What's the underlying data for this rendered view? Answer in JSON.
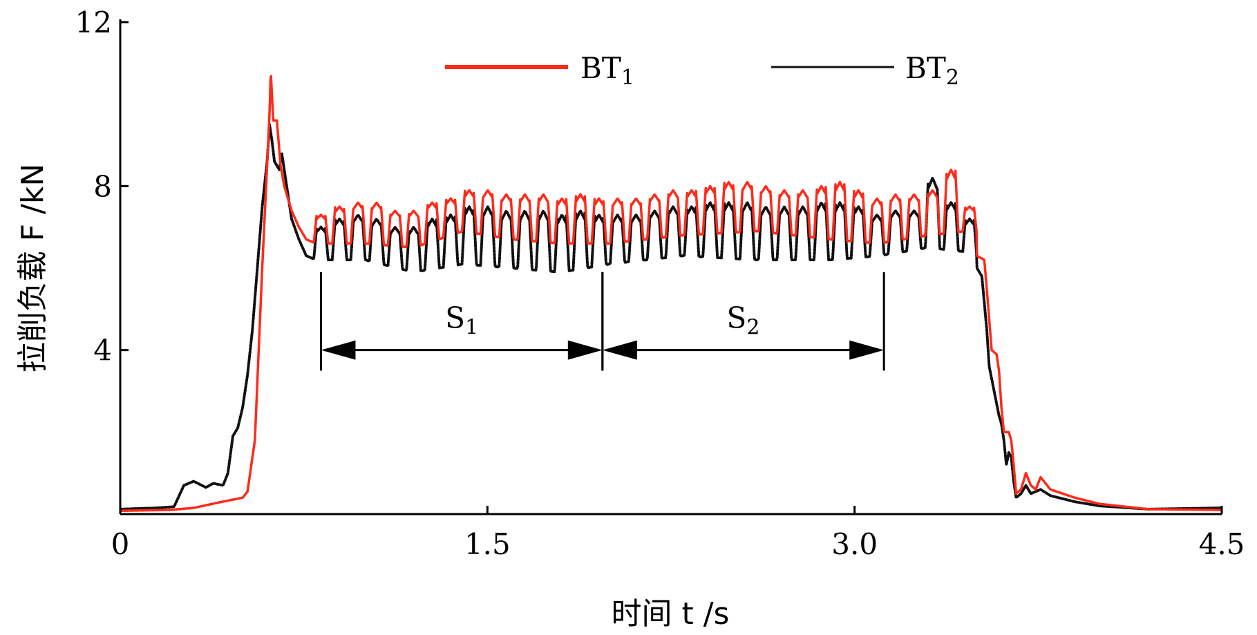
{
  "chart_data": {
    "type": "line",
    "title": "",
    "xlabel": "时间 t /s",
    "ylabel": "拉削负载 F /kN",
    "xlim": [
      0,
      4.5
    ],
    "ylim": [
      0,
      12
    ],
    "x_ticks": [
      0,
      1.5,
      3.0,
      4.5
    ],
    "x_tick_labels": [
      "0",
      "1.5",
      "3.0",
      "4.5"
    ],
    "y_ticks": [
      4,
      8,
      12
    ],
    "y_tick_labels": [
      "4",
      "8",
      "12"
    ],
    "grid": false,
    "legend_position": "top",
    "series": [
      {
        "name": "BT1",
        "name_base": "BT",
        "name_sub": "1",
        "color": "#ff2a1a",
        "style": "solid",
        "pulses": {
          "count": 36,
          "start": 0.82,
          "end": 3.47,
          "ramp": 0.012,
          "plateau": 0.035
        },
        "baseline_keypoints": [
          [
            0,
            0.08
          ],
          [
            0.2,
            0.1
          ],
          [
            0.3,
            0.15
          ],
          [
            0.4,
            0.28
          ],
          [
            0.5,
            0.4
          ],
          [
            0.52,
            0.55
          ],
          [
            0.55,
            1.8
          ],
          [
            0.58,
            6.0
          ],
          [
            0.6,
            8.5
          ],
          [
            0.61,
            9.8
          ],
          [
            0.615,
            10.8
          ],
          [
            0.625,
            9.6
          ],
          [
            0.64,
            9.6
          ],
          [
            0.655,
            8.5
          ],
          [
            0.67,
            8.0
          ],
          [
            0.7,
            7.4
          ],
          [
            0.73,
            7.0
          ],
          [
            0.76,
            6.7
          ],
          [
            0.8,
            6.6
          ],
          [
            1.0,
            6.6
          ],
          [
            1.2,
            6.5
          ],
          [
            1.4,
            6.9
          ],
          [
            1.6,
            6.7
          ],
          [
            1.8,
            6.6
          ],
          [
            2.0,
            6.6
          ],
          [
            2.3,
            6.8
          ],
          [
            2.6,
            6.9
          ],
          [
            2.9,
            6.7
          ],
          [
            3.1,
            6.6
          ],
          [
            3.3,
            6.8
          ],
          [
            3.45,
            6.9
          ],
          [
            3.48,
            6.8
          ],
          [
            3.5,
            6.3
          ],
          [
            3.53,
            6.2
          ],
          [
            3.54,
            5.5
          ],
          [
            3.56,
            4.0
          ],
          [
            3.58,
            3.9
          ],
          [
            3.59,
            3.5
          ],
          [
            3.6,
            2.6
          ],
          [
            3.61,
            2.0
          ],
          [
            3.63,
            2.0
          ],
          [
            3.64,
            1.8
          ],
          [
            3.65,
            1.2
          ],
          [
            3.66,
            0.5
          ],
          [
            3.68,
            0.6
          ],
          [
            3.7,
            1.0
          ],
          [
            3.72,
            0.7
          ],
          [
            3.74,
            0.6
          ],
          [
            3.76,
            0.9
          ],
          [
            3.8,
            0.6
          ],
          [
            3.85,
            0.5
          ],
          [
            3.9,
            0.4
          ],
          [
            4.0,
            0.25
          ],
          [
            4.2,
            0.12
          ],
          [
            4.5,
            0.1
          ]
        ],
        "pulse_heights": [
          7.3,
          7.5,
          7.6,
          7.6,
          7.4,
          7.4,
          7.6,
          7.7,
          7.9,
          7.9,
          7.8,
          7.8,
          7.8,
          7.7,
          7.8,
          7.7,
          7.7,
          7.7,
          7.8,
          7.9,
          7.9,
          8.0,
          8.1,
          8.1,
          8.0,
          7.9,
          7.9,
          8.0,
          8.1,
          7.9,
          7.7,
          7.8,
          7.8,
          7.9,
          8.4,
          7.5
        ]
      },
      {
        "name": "BT2",
        "name_base": "BT",
        "name_sub": "2",
        "color": "#111111",
        "style": "dotted",
        "pulses": {
          "count": 36,
          "start": 0.82,
          "end": 3.47,
          "ramp": 0.012,
          "plateau": 0.035
        },
        "baseline_keypoints": [
          [
            0,
            0.12
          ],
          [
            0.15,
            0.15
          ],
          [
            0.22,
            0.18
          ],
          [
            0.26,
            0.7
          ],
          [
            0.3,
            0.8
          ],
          [
            0.35,
            0.65
          ],
          [
            0.38,
            0.75
          ],
          [
            0.42,
            0.7
          ],
          [
            0.44,
            1.0
          ],
          [
            0.46,
            1.9
          ],
          [
            0.48,
            2.1
          ],
          [
            0.5,
            2.6
          ],
          [
            0.52,
            3.4
          ],
          [
            0.54,
            4.5
          ],
          [
            0.56,
            6.0
          ],
          [
            0.58,
            7.5
          ],
          [
            0.6,
            8.6
          ],
          [
            0.61,
            9.5
          ],
          [
            0.62,
            9.1
          ],
          [
            0.63,
            8.6
          ],
          [
            0.65,
            8.4
          ],
          [
            0.66,
            8.8
          ],
          [
            0.68,
            8.0
          ],
          [
            0.7,
            7.2
          ],
          [
            0.73,
            6.7
          ],
          [
            0.76,
            6.3
          ],
          [
            0.8,
            6.2
          ],
          [
            1.0,
            6.2
          ],
          [
            1.2,
            5.9
          ],
          [
            1.4,
            6.1
          ],
          [
            1.6,
            6.0
          ],
          [
            1.8,
            5.9
          ],
          [
            2.0,
            6.1
          ],
          [
            2.3,
            6.3
          ],
          [
            2.6,
            6.2
          ],
          [
            2.9,
            6.2
          ],
          [
            3.1,
            6.3
          ],
          [
            3.3,
            6.5
          ],
          [
            3.45,
            6.4
          ],
          [
            3.48,
            6.2
          ],
          [
            3.5,
            6.0
          ],
          [
            3.52,
            5.8
          ],
          [
            3.54,
            4.5
          ],
          [
            3.55,
            3.6
          ],
          [
            3.57,
            3.0
          ],
          [
            3.59,
            2.4
          ],
          [
            3.6,
            2.2
          ],
          [
            3.61,
            1.8
          ],
          [
            3.62,
            1.2
          ],
          [
            3.63,
            1.5
          ],
          [
            3.64,
            1.4
          ],
          [
            3.65,
            0.8
          ],
          [
            3.66,
            0.4
          ],
          [
            3.68,
            0.5
          ],
          [
            3.7,
            0.7
          ],
          [
            3.72,
            0.5
          ],
          [
            3.76,
            0.6
          ],
          [
            3.8,
            0.45
          ],
          [
            3.9,
            0.3
          ],
          [
            4.0,
            0.2
          ],
          [
            4.2,
            0.12
          ],
          [
            4.5,
            0.15
          ]
        ],
        "pulse_heights": [
          7.0,
          7.2,
          7.3,
          7.2,
          7.0,
          7.0,
          7.2,
          7.3,
          7.5,
          7.5,
          7.4,
          7.4,
          7.4,
          7.3,
          7.4,
          7.3,
          7.3,
          7.3,
          7.4,
          7.5,
          7.5,
          7.6,
          7.6,
          7.6,
          7.5,
          7.5,
          7.5,
          7.6,
          7.6,
          7.5,
          7.3,
          7.4,
          7.4,
          8.2,
          7.6,
          7.2
        ]
      }
    ],
    "annotations": [
      {
        "name": "S1",
        "base": "S",
        "sub": "1",
        "x_start": 0.82,
        "x_end": 1.97,
        "y": 4.0,
        "marker_top": 5.9,
        "marker_bottom": 3.5
      },
      {
        "name": "S2",
        "base": "S",
        "sub": "2",
        "x_start": 1.97,
        "x_end": 3.12,
        "y": 4.0,
        "marker_top": 5.9,
        "marker_bottom": 3.5
      }
    ]
  }
}
